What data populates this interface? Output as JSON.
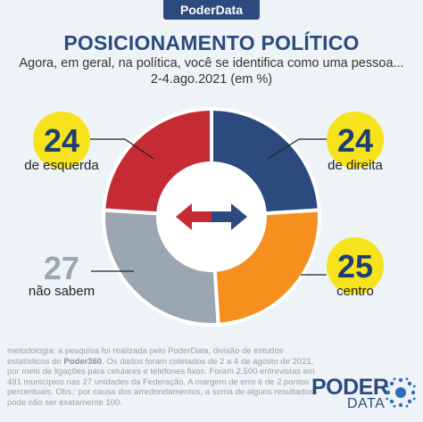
{
  "header": {
    "brand": "PoderData",
    "title": "POSICIONAMENTO POLÍTICO",
    "subtitle_line1": "Agora, em geral, na política, você se identifica como uma pessoa...",
    "subtitle_line2": "2-4.ago.2021 (em %)"
  },
  "chart_data": {
    "type": "pie",
    "donut": true,
    "categories": [
      "de direita",
      "centro",
      "não sabem",
      "de esquerda"
    ],
    "values": [
      24,
      25,
      27,
      24
    ],
    "colors": [
      "#2c4a7e",
      "#f5901e",
      "#9aa7b3",
      "#c62b34"
    ],
    "value_bubbles": [
      "#f7e31b",
      "#f7e31b",
      null,
      "#f7e31b"
    ],
    "center_icon": "left-right-arrow-icon"
  },
  "methodology": {
    "part1": "metodologia: a pesquisa foi realizada pelo PoderData, divisão de estudos estatísticos do ",
    "strong": "Poder360",
    "part2": ". Os dados foram coletados de 2 a 4 de agosto de 2021, por meio de ligações para celulares e telefones fixos. Foram 2.500 entrevistas em 491 municípios nas 27 unidades da Federação. A margem de erro é de 2 pontos percentuais. Obs.: por causa dos arredondamentos, a soma de alguns resultados pode não ser exatamente 100."
  },
  "logo": {
    "word": "PODER",
    "sub": "DATA"
  }
}
